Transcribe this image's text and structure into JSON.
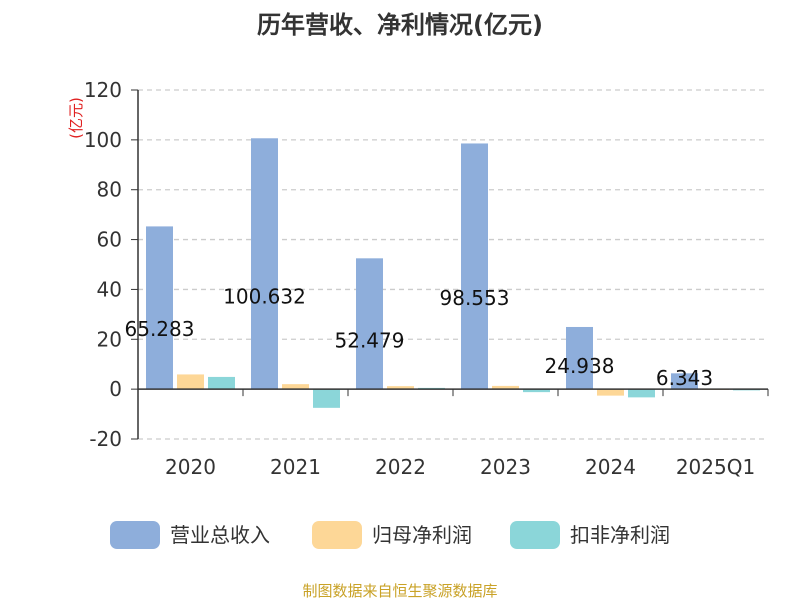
{
  "chart_data": {
    "type": "bar",
    "title": "历年营收、净利情况(亿元)",
    "ylabel": "(亿元)",
    "categories": [
      "2020",
      "2021",
      "2022",
      "2023",
      "2024",
      "2025Q1"
    ],
    "ylim": [
      -20,
      120
    ],
    "yticks": [
      -20,
      0,
      20,
      40,
      60,
      80,
      100,
      120
    ],
    "grid": true,
    "legend_position": "bottom",
    "series": [
      {
        "name": "营业总收入",
        "color": "#8eaedb",
        "values": [
          65.283,
          100.632,
          52.479,
          98.553,
          24.938,
          6.343
        ]
      },
      {
        "name": "归母净利润",
        "color": "#fdd797",
        "values": [
          5.9,
          2.0,
          1.2,
          1.3,
          -2.6,
          -0.3
        ]
      },
      {
        "name": "扣非净利润",
        "color": "#8bd6d9",
        "values": [
          4.9,
          -7.5,
          0.5,
          -1.2,
          -3.3,
          -0.5
        ]
      }
    ],
    "data_labels": [
      "65.283",
      "100.632",
      "52.479",
      "98.553",
      "24.938",
      "6.343"
    ]
  },
  "source": "制图数据来自恒生聚源数据库"
}
